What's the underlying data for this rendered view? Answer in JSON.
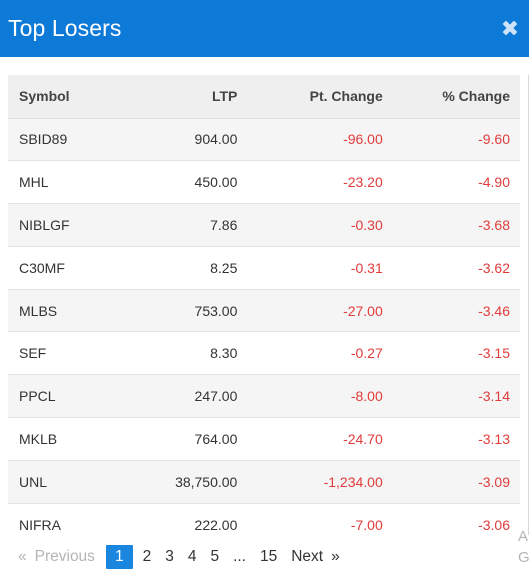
{
  "header": {
    "title": "Top Losers",
    "close_icon": "close-icon"
  },
  "table": {
    "columns": [
      "Symbol",
      "LTP",
      "Pt. Change",
      "% Change"
    ],
    "rows": [
      {
        "symbol": "SBID89",
        "ltp": "904.00",
        "pt_change": "-96.00",
        "pct_change": "-9.60"
      },
      {
        "symbol": "MHL",
        "ltp": "450.00",
        "pt_change": "-23.20",
        "pct_change": "-4.90"
      },
      {
        "symbol": "NIBLGF",
        "ltp": "7.86",
        "pt_change": "-0.30",
        "pct_change": "-3.68"
      },
      {
        "symbol": "C30MF",
        "ltp": "8.25",
        "pt_change": "-0.31",
        "pct_change": "-3.62"
      },
      {
        "symbol": "MLBS",
        "ltp": "753.00",
        "pt_change": "-27.00",
        "pct_change": "-3.46"
      },
      {
        "symbol": "SEF",
        "ltp": "8.30",
        "pt_change": "-0.27",
        "pct_change": "-3.15"
      },
      {
        "symbol": "PPCL",
        "ltp": "247.00",
        "pt_change": "-8.00",
        "pct_change": "-3.14"
      },
      {
        "symbol": "MKLB",
        "ltp": "764.00",
        "pt_change": "-24.70",
        "pct_change": "-3.13"
      },
      {
        "symbol": "UNL",
        "ltp": "38,750.00",
        "pt_change": "-1,234.00",
        "pct_change": "-3.09"
      },
      {
        "symbol": "NIFRA",
        "ltp": "222.00",
        "pt_change": "-7.00",
        "pct_change": "-3.06"
      }
    ]
  },
  "pagination": {
    "prev_arrow": "«",
    "prev_label": "Previous",
    "pages": [
      "1",
      "2",
      "3",
      "4",
      "5",
      "...",
      "15"
    ],
    "active_page": "1",
    "next_label": "Next",
    "next_arrow": "»"
  },
  "cutoff_text": [
    "A",
    "G"
  ],
  "colors": {
    "header_bg": "#0e7ad8",
    "negative": "#e23b3b",
    "active_page": "#1b86e0"
  }
}
